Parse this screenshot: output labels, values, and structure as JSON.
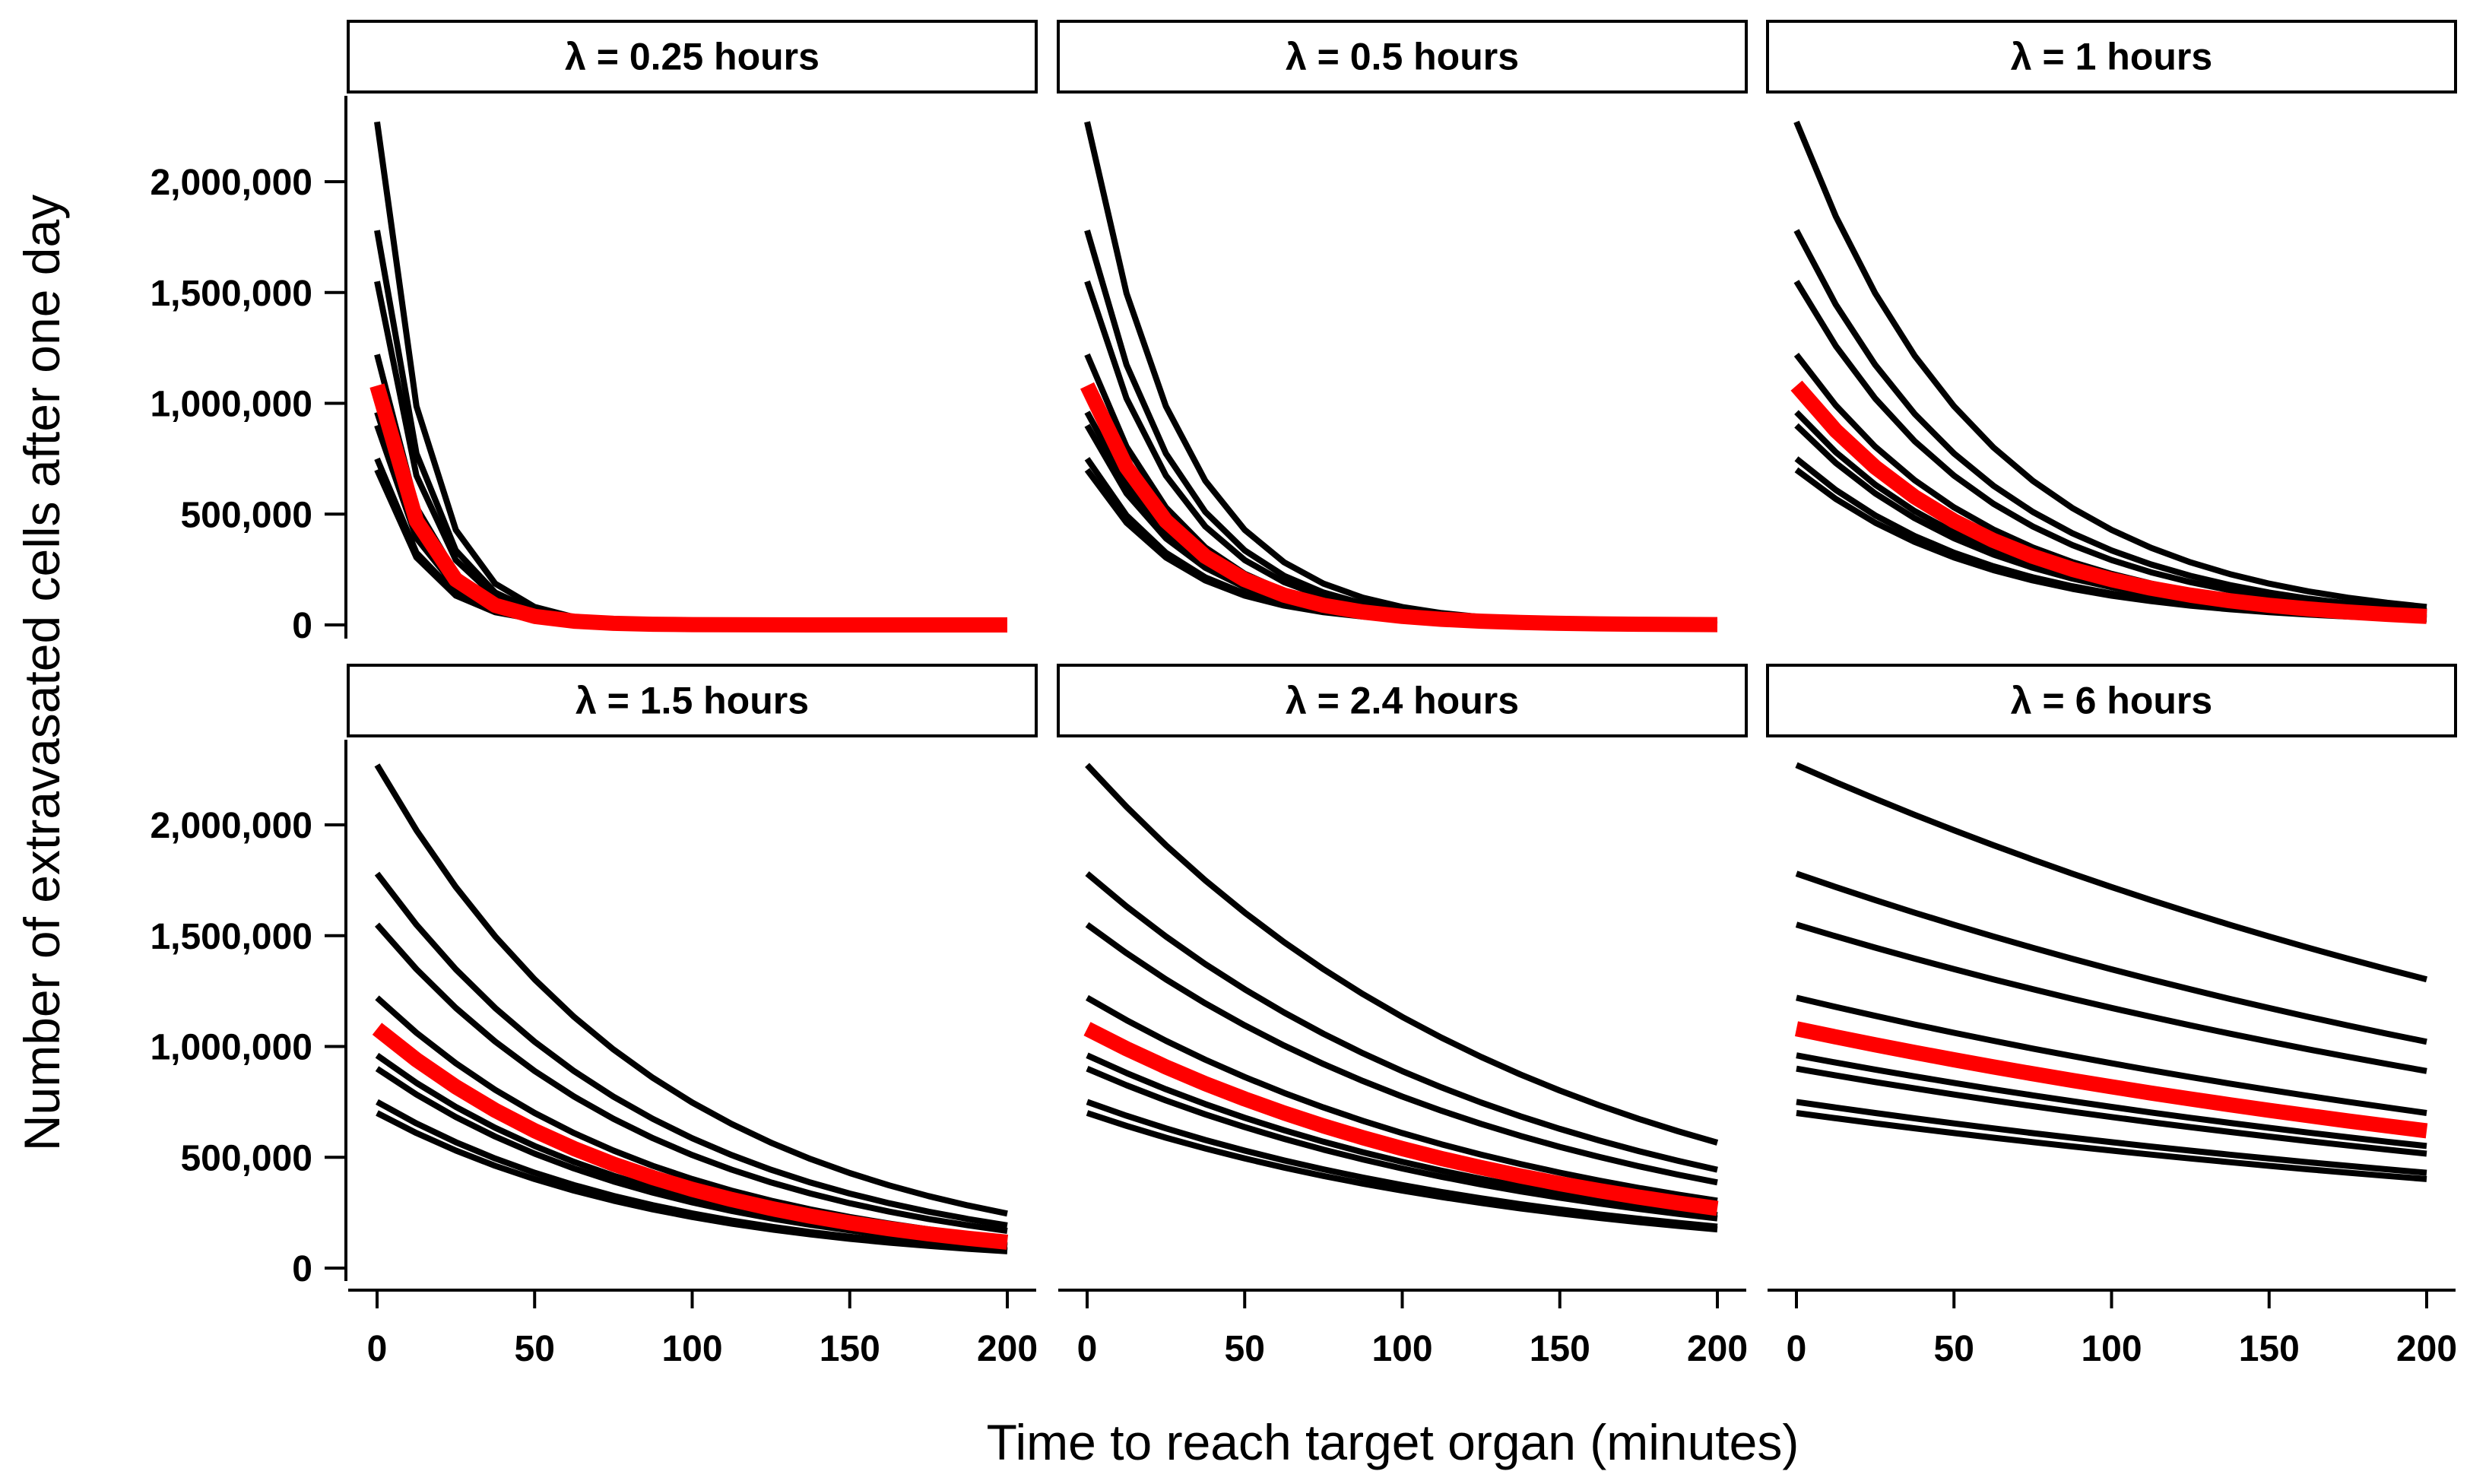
{
  "chart_data": {
    "type": "line",
    "layout": "facet grid 2 rows x 3 columns",
    "xlabel": "Time to reach target organ (minutes)",
    "ylabel": "Number of extravasated cells after one day",
    "xlim": [
      0,
      200
    ],
    "ylim": [
      0,
      2300000
    ],
    "x_ticks": [
      0,
      50,
      100,
      150,
      200
    ],
    "x_tick_labels": [
      "0",
      "50",
      "100",
      "150",
      "200"
    ],
    "y_ticks": [
      0,
      500000,
      1000000,
      1500000,
      2000000
    ],
    "y_tick_labels": [
      "0",
      "500,000",
      "1,000,000",
      "1,500,000",
      "2,000,000"
    ],
    "curve_x": [
      0,
      12.5,
      25,
      37.5,
      50,
      62.5,
      75,
      87.5,
      100,
      112.5,
      125,
      137.5,
      150,
      162.5,
      175,
      187.5,
      200
    ],
    "initial_values": [
      2270000,
      1780000,
      1550000,
      1220000,
      960000,
      900000,
      750000,
      700000
    ],
    "highlight_initial_value": 1080000,
    "curve_color": "#000000",
    "highlight_color": "#ff0000",
    "panels": [
      {
        "label": "λ =  0.25 hours",
        "lambda_hours": 0.25
      },
      {
        "label": "λ =  0.5 hours",
        "lambda_hours": 0.5
      },
      {
        "label": "λ =  1 hours",
        "lambda_hours": 1
      },
      {
        "label": "λ =  1.5 hours",
        "lambda_hours": 1.5
      },
      {
        "label": "λ =  2.4 hours",
        "lambda_hours": 2.4
      },
      {
        "label": "λ =  6 hours",
        "lambda_hours": 6
      }
    ]
  }
}
